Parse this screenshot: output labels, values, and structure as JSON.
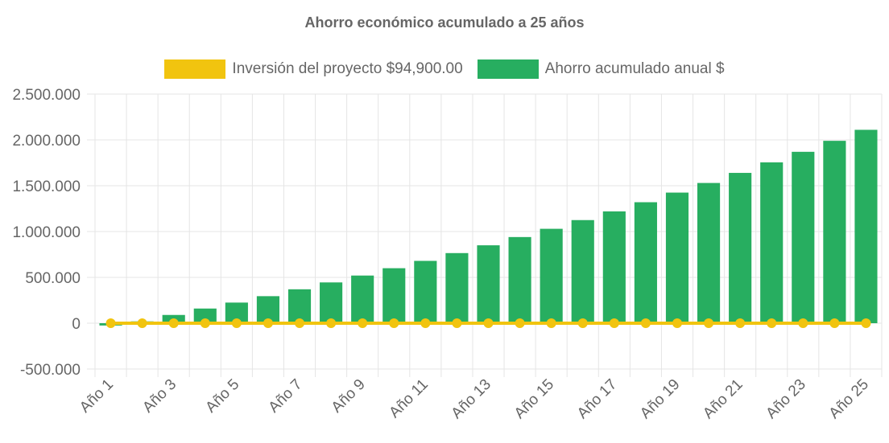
{
  "colors": {
    "investment": "#f1c40f",
    "savings": "#27ae60",
    "grid": "#e5e5e5",
    "text": "#666666"
  },
  "chart_data": {
    "type": "bar",
    "title": "Ahorro económico acumulado a 25 años",
    "xlabel": "",
    "ylabel": "",
    "ylim": [
      -500000,
      2500000
    ],
    "yticks": [
      2500000,
      2000000,
      1500000,
      1000000,
      500000,
      0,
      -500000
    ],
    "ytick_labels": [
      "2.500.000",
      "2.000.000",
      "1.500.000",
      "1.000.000",
      "500.000",
      "0",
      "-500.000"
    ],
    "categories": [
      "Año 1",
      "Año 2",
      "Año 3",
      "Año 4",
      "Año 5",
      "Año 6",
      "Año 7",
      "Año 8",
      "Año 9",
      "Año 10",
      "Año 11",
      "Año 12",
      "Año 13",
      "Año 14",
      "Año 15",
      "Año 16",
      "Año 17",
      "Año 18",
      "Año 19",
      "Año 20",
      "Año 21",
      "Año 22",
      "Año 23",
      "Año 24",
      "Año 25"
    ],
    "shown_xtick_labels": [
      "Año 1",
      "Año 3",
      "Año 5",
      "Año 7",
      "Año 9",
      "Año 11",
      "Año 13",
      "Año 15",
      "Año 17",
      "Año 19",
      "Año 21",
      "Año 23",
      "Año 25"
    ],
    "series": [
      {
        "name": "Inversión del proyecto $94,900.00",
        "type": "line",
        "values": [
          0,
          0,
          0,
          0,
          0,
          0,
          0,
          0,
          0,
          0,
          0,
          0,
          0,
          0,
          0,
          0,
          0,
          0,
          0,
          0,
          0,
          0,
          0,
          0,
          0
        ]
      },
      {
        "name": "Ahorro acumulado anual $",
        "type": "bar",
        "values": [
          -25000,
          20000,
          90000,
          160000,
          225000,
          295000,
          370000,
          445000,
          520000,
          600000,
          680000,
          765000,
          850000,
          940000,
          1030000,
          1125000,
          1220000,
          1320000,
          1425000,
          1530000,
          1640000,
          1755000,
          1870000,
          1990000,
          2110000
        ]
      }
    ]
  }
}
